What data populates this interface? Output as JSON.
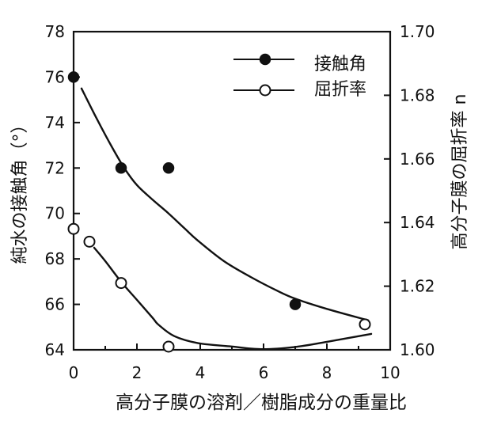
{
  "chart_data": {
    "type": "scatter",
    "title": "",
    "xlabel": "高分子膜の溶剤／樹脂成分の重量比",
    "ylabel": "純水の接触角（°）",
    "y2label": "高分子膜の屈折率 n",
    "xlim": [
      0,
      10
    ],
    "ylim": [
      64,
      78
    ],
    "y2lim": [
      1.6,
      1.7
    ],
    "xticks": [
      0,
      2,
      4,
      6,
      8,
      10
    ],
    "xtick_labels": [
      "0",
      "2",
      "4",
      "6",
      "8",
      "10"
    ],
    "xminor_ticks": [
      1,
      3,
      5,
      7,
      9
    ],
    "yticks": [
      64,
      66,
      68,
      70,
      72,
      74,
      76,
      78
    ],
    "ytick_labels": [
      "64",
      "66",
      "68",
      "70",
      "72",
      "74",
      "76",
      "78"
    ],
    "y2ticks": [
      1.6,
      1.62,
      1.64,
      1.66,
      1.68,
      1.7
    ],
    "y2tick_labels": [
      "1.60",
      "1.62",
      "1.64",
      "1.66",
      "1.68",
      "1.70"
    ],
    "grid": false,
    "legend": {
      "position": "upper right",
      "entries": [
        {
          "label": "接触角",
          "marker": "filled-circle"
        },
        {
          "label": "屈折率",
          "marker": "open-circle"
        }
      ]
    },
    "series": [
      {
        "name": "接触角",
        "axis": "left",
        "marker": "filled-circle",
        "x": [
          0,
          1.5,
          3.0,
          7.0
        ],
        "y": [
          76,
          72,
          72,
          66
        ],
        "fit_curve": [
          [
            0.25,
            75.5
          ],
          [
            0.72,
            74.2
          ],
          [
            1.2,
            72.95
          ],
          [
            1.6,
            72.0
          ],
          [
            2.0,
            71.25
          ],
          [
            2.5,
            70.6
          ],
          [
            3.0,
            70.0
          ],
          [
            3.5,
            69.35
          ],
          [
            3.93,
            68.8
          ],
          [
            4.75,
            67.9
          ],
          [
            5.6,
            67.2
          ],
          [
            6.43,
            66.6
          ],
          [
            7.0,
            66.25
          ],
          [
            8.0,
            65.8
          ],
          [
            9.3,
            65.3
          ]
        ]
      },
      {
        "name": "屈折率",
        "axis": "right",
        "marker": "open-circle",
        "x": [
          0,
          0.5,
          1.5,
          3.0,
          9.2
        ],
        "y": [
          1.638,
          1.634,
          1.621,
          1.601,
          1.608
        ],
        "fit_curve": [
          [
            0.65,
            1.6321
          ],
          [
            1.0,
            1.6279
          ],
          [
            1.5,
            1.6214
          ],
          [
            2.0,
            1.6157
          ],
          [
            2.5,
            1.61
          ],
          [
            2.68,
            1.6079
          ],
          [
            3.18,
            1.6043
          ],
          [
            3.93,
            1.6021
          ],
          [
            4.93,
            1.6011
          ],
          [
            5.93,
            1.6002
          ],
          [
            7.0,
            1.6009
          ],
          [
            8.0,
            1.6025
          ],
          [
            9.4,
            1.605
          ]
        ]
      }
    ]
  }
}
